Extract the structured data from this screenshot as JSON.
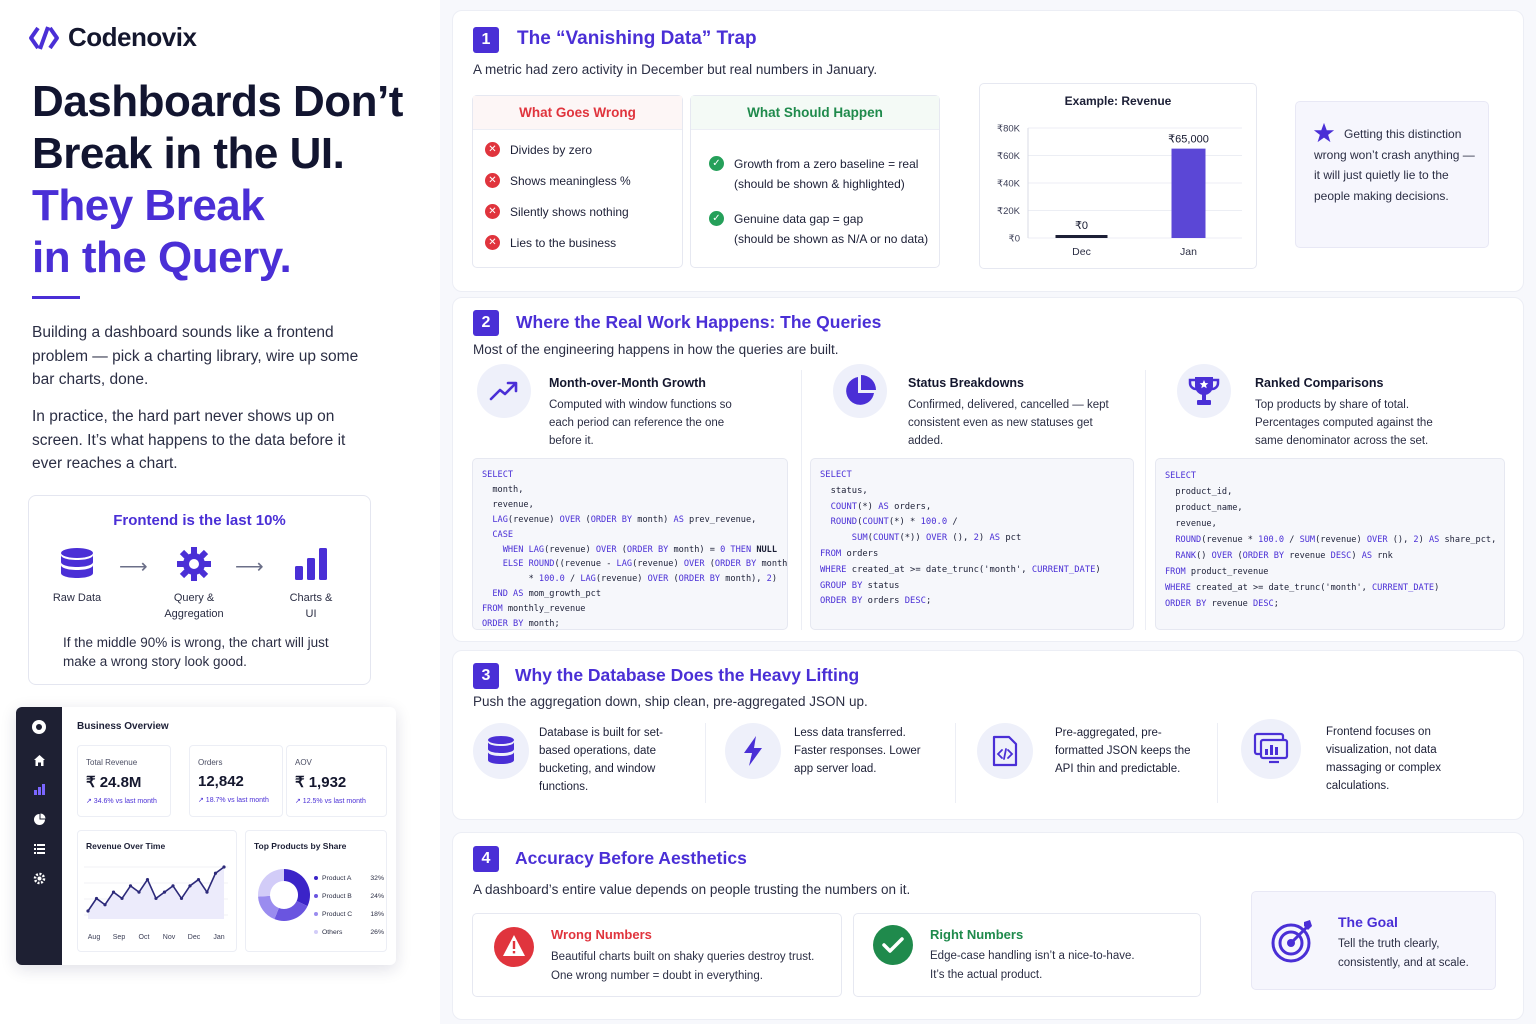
{
  "brand": {
    "name": "Codenovix"
  },
  "hero": {
    "line1": "Dashboards Don’t",
    "line2": "Break in the UI.",
    "line3": "They Break",
    "line4": "in the Query."
  },
  "intro": {
    "p1": "Building a dashboard sounds like a frontend problem — pick a charting library, wire up some bar charts, done.",
    "p2": "In practice, the hard part never shows up on screen. It’s what happens to the data before it ever reaches a chart."
  },
  "last10": {
    "title": "Frontend is the last 10%",
    "steps": [
      "Raw Data",
      "Query &\nAggregation",
      "Charts &\nUI"
    ],
    "note": "If the middle 90% is wrong, the chart will just make a wrong story look good.",
    "icons": [
      "database-icon",
      "gear-icon",
      "bar-chart-icon"
    ]
  },
  "mini_dashboard": {
    "title": "Business Overview",
    "kpis": [
      {
        "label": "Total Revenue",
        "value": "₹ 24.8M",
        "delta": "↗ 34.6% vs last month"
      },
      {
        "label": "Orders",
        "value": "12,842",
        "delta": "↗ 18.7% vs last month"
      },
      {
        "label": "AOV",
        "value": "₹ 1,932",
        "delta": "↗ 12.5% vs last month"
      }
    ],
    "revenue_chart": {
      "title": "Revenue Over Time",
      "months": [
        "Aug",
        "Sep",
        "Oct",
        "Nov",
        "Dec",
        "Jan"
      ],
      "values": [
        2,
        4,
        3,
        5,
        4,
        6,
        5,
        7,
        4,
        5,
        6,
        4,
        6,
        7,
        5,
        8,
        9
      ]
    },
    "products": {
      "title": "Top Products by Share",
      "items": [
        {
          "name": "Product A",
          "pct": "32%",
          "value": 32
        },
        {
          "name": "Product B",
          "pct": "24%",
          "value": 24
        },
        {
          "name": "Product C",
          "pct": "18%",
          "value": 18
        },
        {
          "name": "Others",
          "pct": "26%",
          "value": 26
        }
      ]
    }
  },
  "s1": {
    "num": "1",
    "title": "The “Vanishing Data” Trap",
    "sub": "A metric had zero activity in December but real numbers in January.",
    "wrong": {
      "title": "What Goes Wrong",
      "items": [
        "Divides by zero",
        "Shows meaningless %",
        "Silently shows nothing",
        "Lies to the business"
      ]
    },
    "right": {
      "title": "What Should Happen",
      "items": [
        {
          "a": "Growth from a zero baseline = real",
          "b": "(should be shown & highlighted)"
        },
        {
          "a": "Genuine data gap = gap",
          "b": "(should be shown as N/A or no data)"
        }
      ]
    },
    "callout": "Getting this distinction wrong won’t crash anything — it will just quietly lie to the people making decisions."
  },
  "chart_data": {
    "type": "bar",
    "title": "Example: Revenue",
    "categories": [
      "Dec",
      "Jan"
    ],
    "values": [
      0,
      65000
    ],
    "data_labels": [
      "₹0",
      "₹65,000"
    ],
    "y_ticks": [
      "₹0",
      "₹20K",
      "₹40K",
      "₹60K",
      "₹80K"
    ],
    "ylim": [
      0,
      80000
    ],
    "grid": true
  },
  "s2": {
    "num": "2",
    "title": "Where the Real Work Happens: The Queries",
    "sub": "Most of the engineering happens in how the queries are built.",
    "cols": [
      {
        "title": "Month-over-Month Growth",
        "desc": "Computed with window functions so each period can reference the one before it.",
        "icon": "trend-up-icon"
      },
      {
        "title": "Status Breakdowns",
        "desc": "Confirmed, delivered, cancelled — kept consistent even as new statuses get added.",
        "icon": "pie-chart-icon"
      },
      {
        "title": "Ranked Comparisons",
        "desc": "Top products by share of total. Percentages computed against the same denominator across the set.",
        "icon": "trophy-icon"
      }
    ]
  },
  "s3": {
    "num": "3",
    "title": "Why the Database Does the Heavy Lifting",
    "sub": "Push the aggregation down, ship clean, pre-aggregated JSON up.",
    "items": [
      {
        "text": "Database is built for set-based operations, date bucketing, and window functions.",
        "icon": "database-icon"
      },
      {
        "text": "Less data transferred. Faster responses. Lower app server load.",
        "icon": "lightning-icon"
      },
      {
        "text": "Pre-aggregated, pre-formatted JSON keeps the API thin and predictable.",
        "icon": "code-file-icon"
      },
      {
        "text": "Frontend focuses on visualization, not data massaging or complex calculations.",
        "icon": "monitor-chart-icon"
      }
    ]
  },
  "s4": {
    "num": "4",
    "title": "Accuracy Before Aesthetics",
    "sub": "A dashboard’s entire value depends on people trusting the numbers on it.",
    "wrong": {
      "title": "Wrong Numbers",
      "l1": "Beautiful charts built on shaky queries destroy trust.",
      "l2": "One wrong number = doubt in everything."
    },
    "right": {
      "title": "Right Numbers",
      "l1": "Edge-case handling isn’t a nice-to-have.",
      "l2": "It’s the actual product."
    },
    "goal": {
      "title": "The Goal",
      "text": "Tell the truth clearly, consistently, and at scale."
    }
  },
  "colors": {
    "accent": "#4a2fd6",
    "danger": "#e0343d",
    "success": "#25a05a"
  }
}
